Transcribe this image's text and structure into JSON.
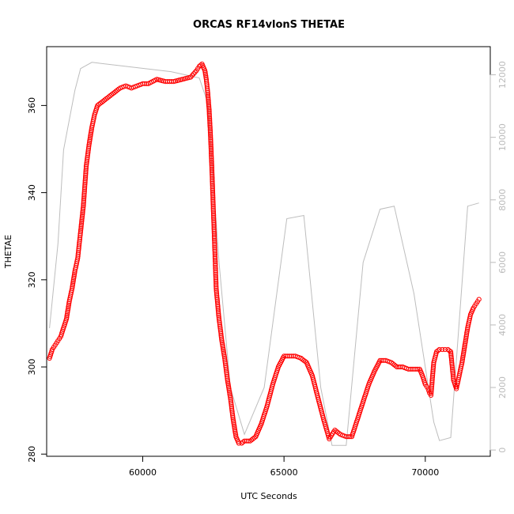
{
  "chart_data": {
    "type": "scatter",
    "title": "ORCAS RF14vlonS THETAE",
    "xlabel": "UTC Seconds",
    "ylabel": "THETAE",
    "xlim": [
      56600,
      72300
    ],
    "ylim": [
      279.5,
      373.5
    ],
    "y2lim": [
      -200,
      12900
    ],
    "x_ticks": [
      60000,
      65000,
      70000
    ],
    "y_ticks": [
      280,
      300,
      320,
      340,
      360
    ],
    "y2_ticks": [
      0,
      2000,
      4000,
      6000,
      8000,
      10000,
      12000
    ],
    "grid": false,
    "colors": {
      "points": "#ff0000",
      "secondary_line": "#bdbdbd",
      "secondary_axis": "#bbbbbb"
    },
    "series": [
      {
        "type": "scatter",
        "axis": "left",
        "x": [
          56700,
          56800,
          56900,
          57000,
          57100,
          57200,
          57300,
          57400,
          57500,
          57600,
          57700,
          57750,
          57800,
          57900,
          58000,
          58100,
          58200,
          58300,
          58400,
          58600,
          58800,
          59000,
          59200,
          59400,
          59600,
          59800,
          60000,
          60200,
          60500,
          60800,
          61100,
          61400,
          61700,
          61900,
          62000,
          62100,
          62200,
          62250,
          62300,
          62350,
          62400,
          62450,
          62500,
          62550,
          62600,
          62700,
          62800,
          62900,
          63000,
          63100,
          63200,
          63300,
          63400,
          63500,
          63600,
          63800,
          64000,
          64200,
          64400,
          64600,
          64800,
          65000,
          65200,
          65400,
          65600,
          65800,
          66000,
          66200,
          66400,
          66600,
          66800,
          67000,
          67200,
          67400,
          67600,
          67800,
          68000,
          68200,
          68400,
          68600,
          68800,
          69000,
          69200,
          69400,
          69600,
          69800,
          69900,
          70000,
          70100,
          70150,
          70200,
          70300,
          70400,
          70500,
          70600,
          70700,
          70800,
          70900,
          71000,
          71100,
          71200,
          71300,
          71400,
          71500,
          71600,
          71700,
          71800,
          71900
        ],
        "y": [
          302,
          304,
          305,
          306,
          307,
          309,
          311,
          315,
          318,
          322,
          325,
          328,
          331,
          337,
          346,
          351,
          355,
          358,
          360,
          361,
          362,
          363,
          364,
          364.5,
          364,
          364.5,
          365,
          365,
          366,
          365.5,
          365.5,
          366,
          366.5,
          368,
          369,
          369.5,
          368,
          366,
          363,
          359,
          353,
          345,
          336,
          327,
          318,
          311,
          306,
          302,
          297,
          293,
          288,
          284,
          282.5,
          282.5,
          283,
          283,
          284,
          287,
          291,
          296,
          300,
          302.5,
          302.5,
          302.5,
          302,
          301,
          298,
          293,
          288,
          283.5,
          285.5,
          284.5,
          284,
          284,
          288,
          292,
          296,
          299,
          301.5,
          301.5,
          301,
          300,
          300,
          299.5,
          299.5,
          299.5,
          298,
          296,
          295,
          294,
          293.5,
          301,
          303.5,
          304,
          304,
          304,
          304,
          303.5,
          297,
          295,
          298,
          301,
          305,
          309,
          312,
          313.5,
          314.5,
          315.5
        ]
      },
      {
        "type": "line",
        "axis": "right",
        "x": [
          56700,
          57000,
          57200,
          57600,
          57800,
          58200,
          61000,
          62000,
          62300,
          62700,
          63100,
          63600,
          64300,
          65100,
          65700,
          66300,
          66700,
          67200,
          67800,
          68400,
          68900,
          69600,
          70300,
          70500,
          70900,
          71500,
          71900
        ],
        "y": [
          3900,
          6600,
          9600,
          11500,
          12200,
          12400,
          12100,
          11900,
          11100,
          6000,
          2000,
          500,
          2000,
          7400,
          7500,
          2000,
          150,
          150,
          6000,
          7700,
          7800,
          5000,
          900,
          300,
          400,
          7800,
          7900
        ]
      }
    ]
  }
}
